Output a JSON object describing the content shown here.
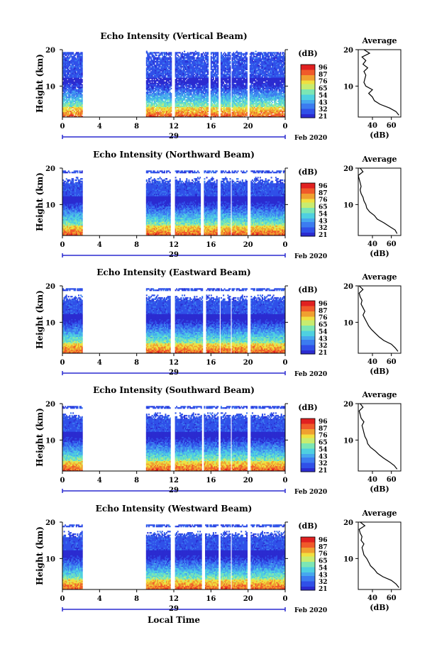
{
  "figure": {
    "xlabel": "Local Time",
    "date_label": "Feb 2020",
    "day_label": "29",
    "ylabel": "Height (km)",
    "colorbar_unit": "(dB)",
    "colorbar_ticks": [
      "96",
      "87",
      "76",
      "65",
      "54",
      "43",
      "32",
      "21"
    ],
    "profile_title": "Average",
    "profile_xlabel": "(dB)",
    "colors": {
      "text": "#000000",
      "background": "#ffffff"
    }
  },
  "chart_data": [
    {
      "type": "heatmap",
      "title": "Echo Intensity (Vertical Beam)",
      "xlabel": "Local Time",
      "ylabel": "Height (km)",
      "xlim": [
        0,
        24
      ],
      "ylim": [
        1.5,
        20
      ],
      "x_ticks": [
        "0",
        "4",
        "8",
        "12",
        "16",
        "20",
        "0"
      ],
      "y_ticks": [
        "20",
        "10"
      ],
      "colorbar": {
        "unit": "dB",
        "range": [
          21,
          96
        ],
        "ticks": [
          96,
          87,
          76,
          65,
          54,
          43,
          32,
          21
        ]
      },
      "data_gaps_hours": [
        [
          2.1,
          9.0
        ],
        [
          11.7,
          12.1
        ],
        [
          15.6,
          15.9
        ],
        [
          16.7,
          17.0
        ],
        [
          18.0,
          18.2
        ],
        [
          19.9,
          20.1
        ]
      ],
      "profile": {
        "title": "Average",
        "xlabel": "(dB)",
        "x_ticks": [
          "40",
          "60"
        ],
        "y_ticks": [
          "20",
          "10"
        ],
        "heights": [
          2,
          3,
          4,
          5,
          6,
          7,
          8,
          9,
          10,
          11,
          12,
          13,
          14,
          15,
          16,
          17,
          18,
          19,
          20
        ],
        "values": [
          68,
          65,
          58,
          48,
          42,
          40,
          36,
          40,
          33,
          31,
          32,
          33,
          31,
          35,
          30,
          33,
          29,
          37,
          31
        ]
      }
    },
    {
      "type": "heatmap",
      "title": "Echo Intensity (Northward Beam)",
      "xlabel": "Local Time",
      "ylabel": "Height (km)",
      "xlim": [
        0,
        24
      ],
      "ylim": [
        1.5,
        20
      ],
      "x_ticks": [
        "0",
        "4",
        "8",
        "12",
        "16",
        "20",
        "0"
      ],
      "y_ticks": [
        "20",
        "10"
      ],
      "colorbar": {
        "unit": "dB",
        "range": [
          21,
          96
        ],
        "ticks": [
          96,
          87,
          76,
          65,
          54,
          43,
          32,
          21
        ]
      },
      "data_gaps_hours": [
        [
          2.1,
          9.0
        ],
        [
          11.6,
          12.0
        ],
        [
          14.8,
          15.2
        ],
        [
          16.6,
          17.0
        ],
        [
          18.0,
          18.2
        ],
        [
          19.9,
          20.2
        ]
      ],
      "profile": {
        "title": "Average",
        "xlabel": "(dB)",
        "x_ticks": [
          "40",
          "60"
        ],
        "y_ticks": [
          "20",
          "10"
        ],
        "heights": [
          2,
          3,
          4,
          5,
          6,
          7,
          8,
          9,
          10,
          11,
          12,
          13,
          14,
          15,
          16,
          17,
          18,
          19,
          20
        ],
        "values": [
          66,
          64,
          58,
          52,
          45,
          42,
          37,
          34,
          33,
          31,
          30,
          28,
          27,
          28,
          27,
          26,
          25,
          30,
          27
        ]
      }
    },
    {
      "type": "heatmap",
      "title": "Echo Intensity (Eastward Beam)",
      "xlabel": "Local Time",
      "ylabel": "Height (km)",
      "xlim": [
        0,
        24
      ],
      "ylim": [
        1.5,
        20
      ],
      "x_ticks": [
        "0",
        "4",
        "8",
        "12",
        "16",
        "20",
        "0"
      ],
      "y_ticks": [
        "20",
        "10"
      ],
      "colorbar": {
        "unit": "dB",
        "range": [
          21,
          96
        ],
        "ticks": [
          96,
          87,
          76,
          65,
          54,
          43,
          32,
          21
        ]
      },
      "data_gaps_hours": [
        [
          2.1,
          9.0
        ],
        [
          11.6,
          12.0
        ],
        [
          15.0,
          15.4
        ],
        [
          16.8,
          17.0
        ],
        [
          18.0,
          18.2
        ],
        [
          19.9,
          20.2
        ]
      ],
      "profile": {
        "title": "Average",
        "xlabel": "(dB)",
        "x_ticks": [
          "40",
          "60"
        ],
        "y_ticks": [
          "20",
          "10"
        ],
        "heights": [
          2,
          3,
          4,
          5,
          6,
          7,
          8,
          9,
          10,
          11,
          12,
          13,
          14,
          15,
          16,
          17,
          18,
          19,
          20
        ],
        "values": [
          67,
          64,
          60,
          52,
          47,
          43,
          39,
          36,
          34,
          32,
          30,
          32,
          30,
          28,
          29,
          27,
          26,
          30,
          26
        ]
      }
    },
    {
      "type": "heatmap",
      "title": "Echo Intensity (Southward Beam)",
      "xlabel": "Local Time",
      "ylabel": "Height (km)",
      "xlim": [
        0,
        24
      ],
      "ylim": [
        1.5,
        20
      ],
      "x_ticks": [
        "0",
        "4",
        "8",
        "12",
        "16",
        "20",
        "0"
      ],
      "y_ticks": [
        "20",
        "10"
      ],
      "colorbar": {
        "unit": "dB",
        "range": [
          21,
          96
        ],
        "ticks": [
          96,
          87,
          76,
          65,
          54,
          43,
          32,
          21
        ]
      },
      "data_gaps_hours": [
        [
          2.1,
          9.0
        ],
        [
          11.6,
          12.0
        ],
        [
          14.9,
          15.2
        ],
        [
          16.7,
          17.0
        ],
        [
          18.0,
          18.2
        ],
        [
          19.9,
          20.2
        ]
      ],
      "profile": {
        "title": "Average",
        "xlabel": "(dB)",
        "x_ticks": [
          "40",
          "60"
        ],
        "y_ticks": [
          "20",
          "10"
        ],
        "heights": [
          2,
          3,
          4,
          5,
          6,
          7,
          8,
          9,
          10,
          11,
          12,
          13,
          14,
          15,
          16,
          17,
          18,
          19,
          20
        ],
        "values": [
          66,
          63,
          58,
          52,
          47,
          43,
          38,
          35,
          34,
          32,
          31,
          30,
          29,
          31,
          28,
          27,
          26,
          30,
          27
        ]
      }
    },
    {
      "type": "heatmap",
      "title": "Echo Intensity (Westward Beam)",
      "xlabel": "Local Time",
      "ylabel": "Height (km)",
      "xlim": [
        0,
        24
      ],
      "ylim": [
        1.5,
        20
      ],
      "x_ticks": [
        "0",
        "4",
        "8",
        "12",
        "16",
        "20",
        "0"
      ],
      "y_ticks": [
        "20",
        "10"
      ],
      "colorbar": {
        "unit": "dB",
        "range": [
          21,
          96
        ],
        "ticks": [
          96,
          87,
          76,
          65,
          54,
          43,
          32,
          21
        ]
      },
      "data_gaps_hours": [
        [
          2.1,
          9.0
        ],
        [
          11.6,
          12.0
        ],
        [
          14.9,
          15.3
        ],
        [
          16.7,
          17.0
        ],
        [
          18.0,
          18.2
        ],
        [
          19.9,
          20.2
        ]
      ],
      "profile": {
        "title": "Average",
        "xlabel": "(dB)",
        "x_ticks": [
          "40",
          "60"
        ],
        "y_ticks": [
          "20",
          "10"
        ],
        "heights": [
          2,
          3,
          4,
          5,
          6,
          7,
          8,
          9,
          10,
          11,
          12,
          13,
          14,
          15,
          16,
          17,
          18,
          19,
          20
        ],
        "values": [
          68,
          65,
          60,
          51,
          45,
          42,
          38,
          36,
          34,
          31,
          30,
          29,
          31,
          28,
          29,
          27,
          26,
          32,
          27
        ]
      }
    }
  ]
}
